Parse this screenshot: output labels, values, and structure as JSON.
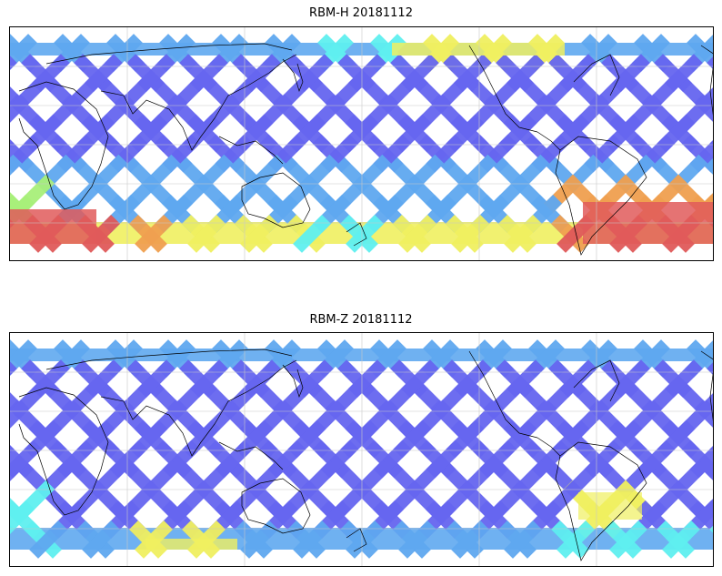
{
  "panels": [
    {
      "title": "RBM-H 20181112",
      "variant": "H"
    },
    {
      "title": "RBM-Z 20181112",
      "variant": "Z"
    }
  ],
  "colors": {
    "track_low": "#6666f0",
    "track_mid": "#5fa8f0",
    "cyan": "#5ff0f0",
    "green": "#a8f07a",
    "yellow": "#f0f060",
    "orange": "#f0a050",
    "red": "#e05a5a",
    "coast": "#000000",
    "grid": "#c8c8c8"
  }
}
